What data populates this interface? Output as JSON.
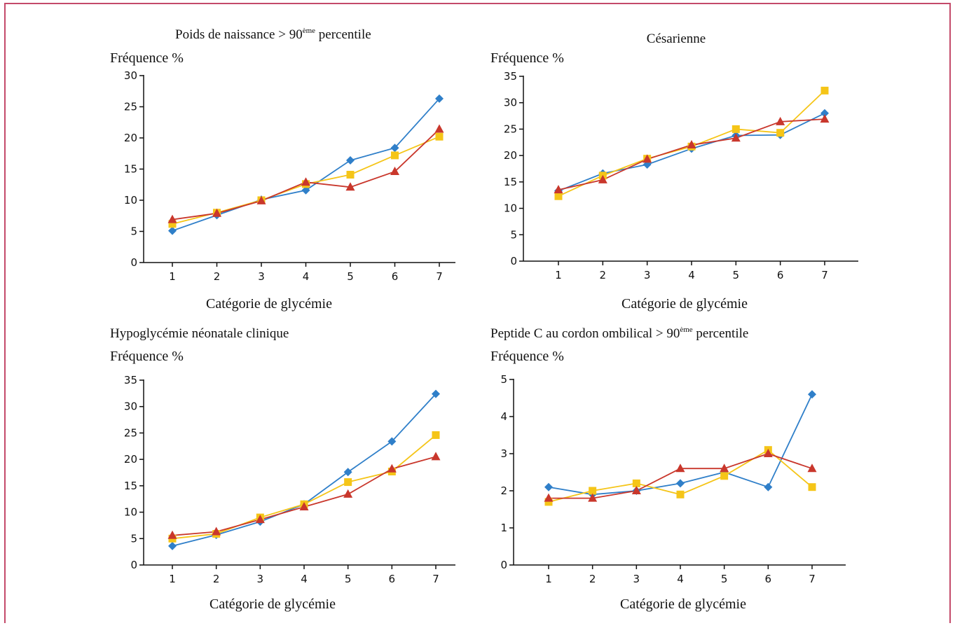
{
  "figure": {
    "colors": {
      "series1": "#2f7fc9",
      "series2": "#f5c518",
      "series3": "#c9372c",
      "axis": "#111111",
      "frame": "#c44a6a"
    }
  },
  "chart_data": [
    {
      "type": "line",
      "title": "Poids de naissance > 90ème percentile",
      "title_main": "Poids de naissance > 90",
      "title_sup": "ème",
      "title_tail": " percentile",
      "ylabel": "Fréquence %",
      "xlabel": "Catégorie de glycémie",
      "ylim": [
        0,
        30
      ],
      "yticks": [
        0,
        5,
        10,
        15,
        20,
        25,
        30
      ],
      "x": [
        1,
        2,
        3,
        4,
        5,
        6,
        7
      ],
      "series": [
        {
          "marker": "diamond",
          "color": "#2f7fc9",
          "values": [
            5.1,
            7.6,
            10.1,
            11.6,
            16.4,
            18.4,
            26.3
          ]
        },
        {
          "marker": "square",
          "color": "#f5c518",
          "values": [
            6.2,
            8.0,
            10.0,
            12.6,
            14.1,
            17.2,
            20.2
          ]
        },
        {
          "marker": "triangle",
          "color": "#c9372c",
          "values": [
            6.9,
            7.9,
            9.9,
            12.9,
            12.1,
            14.6,
            21.4
          ]
        }
      ]
    },
    {
      "type": "line",
      "title": "Césarienne",
      "title_main": "Césarienne",
      "title_sup": "",
      "title_tail": "",
      "ylabel": "Fréquence %",
      "xlabel": "Catégorie de glycémie",
      "ylim": [
        0,
        35
      ],
      "yticks": [
        0,
        5,
        10,
        15,
        20,
        25,
        30,
        35
      ],
      "x": [
        1,
        2,
        3,
        4,
        5,
        6,
        7
      ],
      "series": [
        {
          "marker": "diamond",
          "color": "#2f7fc9",
          "values": [
            13.3,
            16.6,
            18.3,
            21.3,
            23.8,
            23.9,
            28.0
          ]
        },
        {
          "marker": "square",
          "color": "#f5c518",
          "values": [
            12.3,
            16.2,
            19.4,
            21.7,
            25.0,
            24.3,
            32.3
          ]
        },
        {
          "marker": "triangle",
          "color": "#c9372c",
          "values": [
            13.5,
            15.4,
            19.3,
            22.0,
            23.3,
            26.4,
            26.9
          ]
        }
      ]
    },
    {
      "type": "line",
      "title": "Hypoglycémie néonatale clinique",
      "title_main": "Hypoglycémie néonatale clinique",
      "title_sup": "",
      "title_tail": "",
      "ylabel": "Fréquence %",
      "xlabel": "Catégorie de glycémie",
      "ylim": [
        0,
        35
      ],
      "yticks": [
        0,
        5,
        10,
        15,
        20,
        25,
        30,
        35
      ],
      "x": [
        1,
        2,
        3,
        4,
        5,
        6,
        7
      ],
      "series": [
        {
          "marker": "diamond",
          "color": "#2f7fc9",
          "values": [
            3.6,
            5.7,
            8.2,
            11.5,
            17.6,
            23.4,
            32.4
          ]
        },
        {
          "marker": "square",
          "color": "#f5c518",
          "values": [
            5.0,
            5.9,
            9.0,
            11.5,
            15.7,
            17.7,
            24.6
          ]
        },
        {
          "marker": "triangle",
          "color": "#c9372c",
          "values": [
            5.6,
            6.3,
            8.6,
            11.0,
            13.4,
            18.2,
            20.5
          ]
        }
      ]
    },
    {
      "type": "line",
      "title": "Peptide C au cordon ombilical > 90ème percentile",
      "title_main": "Peptide C au cordon ombilical > 90",
      "title_sup": "ème",
      "title_tail": " percentile",
      "ylabel": "Fréquence %",
      "xlabel": "Catégorie de glycémie",
      "ylim": [
        0,
        5
      ],
      "yticks": [
        0,
        1,
        2,
        3,
        4,
        5
      ],
      "x": [
        1,
        2,
        3,
        4,
        5,
        6,
        7
      ],
      "series": [
        {
          "marker": "diamond",
          "color": "#2f7fc9",
          "values": [
            2.1,
            1.9,
            2.0,
            2.2,
            2.5,
            2.1,
            4.6
          ]
        },
        {
          "marker": "square",
          "color": "#f5c518",
          "values": [
            1.7,
            2.0,
            2.2,
            1.9,
            2.4,
            3.1,
            2.1
          ]
        },
        {
          "marker": "triangle",
          "color": "#c9372c",
          "values": [
            1.8,
            1.8,
            2.0,
            2.6,
            2.6,
            3.0,
            2.6
          ]
        }
      ]
    }
  ]
}
